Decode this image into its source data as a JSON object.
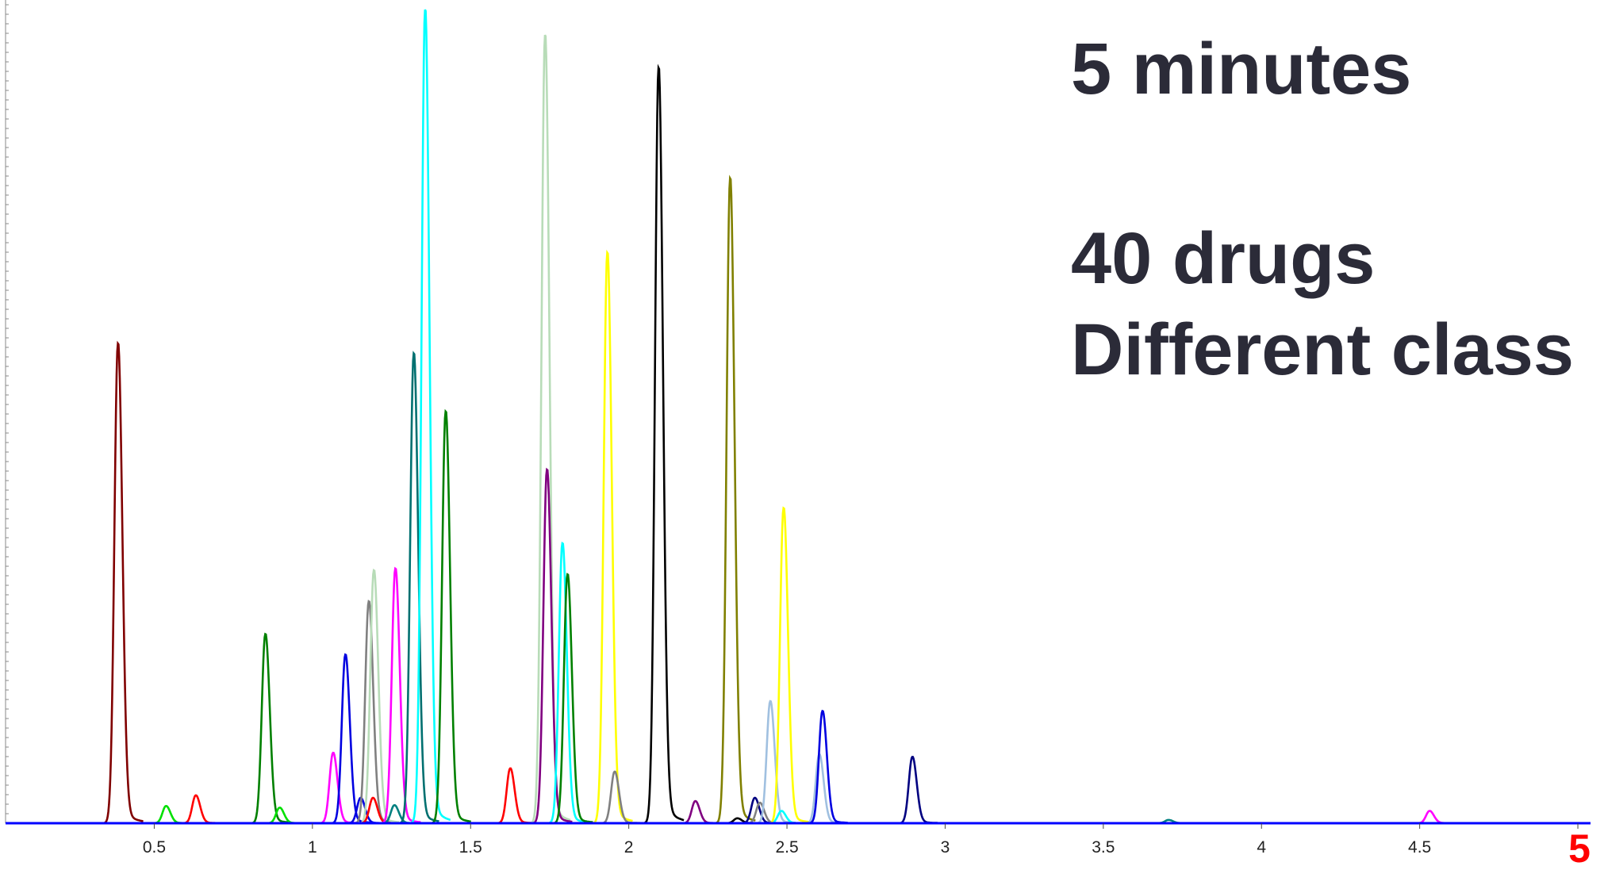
{
  "chart_data": {
    "type": "chromatogram",
    "annotations": [
      "5 minutes",
      "40 drugs",
      "Different class"
    ],
    "xlim": [
      0.03,
      5.04
    ],
    "ylim": [
      0,
      100
    ],
    "xticks": [
      0.5,
      1,
      1.5,
      2,
      2.5,
      3,
      3.5,
      4,
      4.5,
      5
    ],
    "last_tick_color": "#ff0000",
    "baseline_color": "#0000ff",
    "peaks": [
      {
        "x": 0.385,
        "height": 58.6,
        "color": "#800000"
      },
      {
        "x": 0.537,
        "height": 2.1,
        "color": "#00e000"
      },
      {
        "x": 0.631,
        "height": 3.4,
        "color": "#ff0000"
      },
      {
        "x": 0.851,
        "height": 23.1,
        "color": "#008000"
      },
      {
        "x": 0.896,
        "height": 1.9,
        "color": "#00e000"
      },
      {
        "x": 1.065,
        "height": 8.6,
        "color": "#ff00ff"
      },
      {
        "x": 1.104,
        "height": 20.6,
        "color": "#0000e0"
      },
      {
        "x": 1.152,
        "height": 3.1,
        "color": "#0000e0"
      },
      {
        "x": 1.178,
        "height": 27.1,
        "color": "#808080"
      },
      {
        "x": 1.194,
        "height": 30.9,
        "color": "#b8dcb8"
      },
      {
        "x": 1.191,
        "height": 3.1,
        "color": "#ff0000"
      },
      {
        "x": 1.259,
        "height": 2.2,
        "color": "#008080"
      },
      {
        "x": 1.262,
        "height": 31.1,
        "color": "#ff00ff"
      },
      {
        "x": 1.32,
        "height": 57.4,
        "color": "#007070"
      },
      {
        "x": 1.356,
        "height": 99.4,
        "color": "#00ffff"
      },
      {
        "x": 1.421,
        "height": 50.3,
        "color": "#008000"
      },
      {
        "x": 1.625,
        "height": 6.7,
        "color": "#ff0000"
      },
      {
        "x": 1.735,
        "height": 96.3,
        "color": "#b8dcb8"
      },
      {
        "x": 1.741,
        "height": 43.2,
        "color": "#800080"
      },
      {
        "x": 1.79,
        "height": 34.2,
        "color": "#00ffff"
      },
      {
        "x": 1.806,
        "height": 30.4,
        "color": "#008000"
      },
      {
        "x": 1.932,
        "height": 69.7,
        "color": "#ffff00"
      },
      {
        "x": 1.955,
        "height": 6.3,
        "color": "#808080"
      },
      {
        "x": 2.094,
        "height": 92.3,
        "color": "#000000"
      },
      {
        "x": 2.21,
        "height": 2.7,
        "color": "#800080"
      },
      {
        "x": 2.32,
        "height": 78.8,
        "color": "#808000"
      },
      {
        "x": 2.343,
        "height": 0.6,
        "color": "#000000"
      },
      {
        "x": 2.398,
        "height": 3.1,
        "color": "#000080"
      },
      {
        "x": 2.414,
        "height": 2.5,
        "color": "#808080"
      },
      {
        "x": 2.447,
        "height": 14.9,
        "color": "#a0c0e0"
      },
      {
        "x": 2.482,
        "height": 1.5,
        "color": "#00ffff"
      },
      {
        "x": 2.489,
        "height": 38.5,
        "color": "#ffff00"
      },
      {
        "x": 2.602,
        "height": 8.4,
        "color": "#a0c0e0"
      },
      {
        "x": 2.612,
        "height": 13.7,
        "color": "#0000e0"
      },
      {
        "x": 2.896,
        "height": 8.1,
        "color": "#000080"
      },
      {
        "x": 3.706,
        "height": 0.4,
        "color": "#008080"
      },
      {
        "x": 4.531,
        "height": 1.5,
        "color": "#ff00ff"
      }
    ]
  }
}
